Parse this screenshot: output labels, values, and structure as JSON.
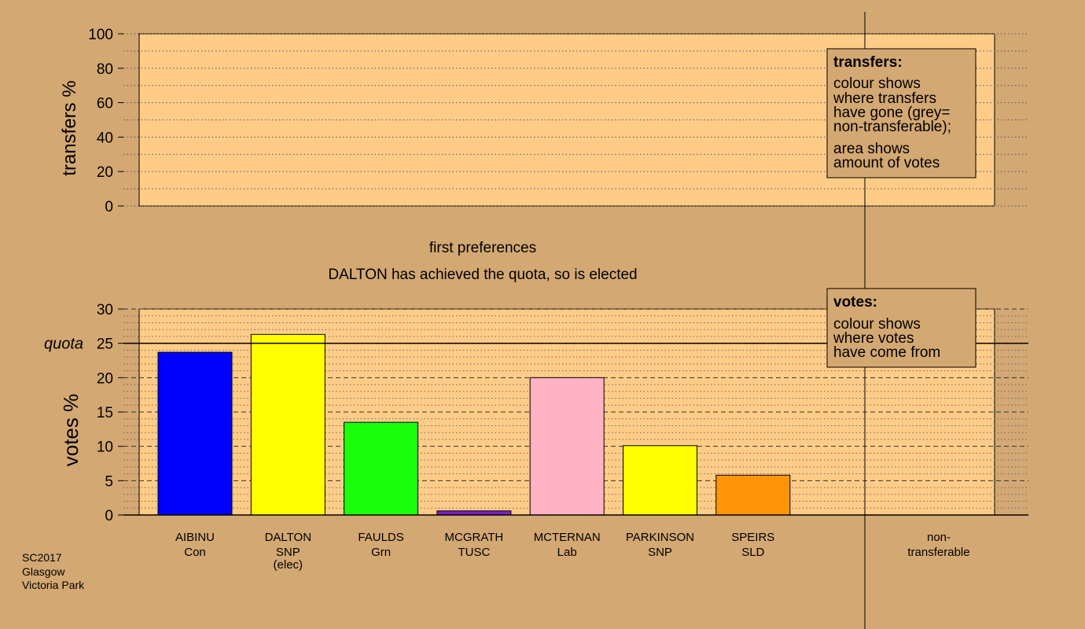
{
  "chart_data": [
    {
      "type": "bar",
      "panel": "transfers",
      "ylabel": "transfers %",
      "ylim": [
        0,
        100
      ],
      "yticks": [
        0,
        20,
        40,
        60,
        80,
        100
      ],
      "values": [],
      "legend": {
        "title": "transfers:",
        "lines1": [
          "colour shows",
          "where transfers",
          "have gone (grey=",
          "non-transferable);"
        ],
        "lines2": [
          "area shows",
          "amount of votes"
        ]
      }
    },
    {
      "type": "bar",
      "panel": "votes",
      "title": "first preferences",
      "subtitle": "DALTON has achieved the quota, so is elected",
      "ylabel": "votes %",
      "ylim": [
        0,
        30
      ],
      "yticks": [
        0,
        5,
        10,
        15,
        20,
        25,
        30
      ],
      "quota": 25,
      "quota_label": "quota",
      "categories": [
        {
          "name": "AIBINU",
          "party": "Con",
          "note": "",
          "value": 23.7,
          "color": "#0000ff"
        },
        {
          "name": "DALTON",
          "party": "SNP",
          "note": "(elec)",
          "value": 26.3,
          "color": "#ffff00"
        },
        {
          "name": "FAULDS",
          "party": "Grn",
          "note": "",
          "value": 13.5,
          "color": "#1aff0a"
        },
        {
          "name": "MCGRATH",
          "party": "TUSC",
          "note": "",
          "value": 0.6,
          "color": "#7a1fc4"
        },
        {
          "name": "MCTERNAN",
          "party": "Lab",
          "note": "",
          "value": 20.0,
          "color": "#ffb3c4"
        },
        {
          "name": "PARKINSON",
          "party": "SNP",
          "note": "",
          "value": 10.1,
          "color": "#ffff00"
        },
        {
          "name": "SPEIRS",
          "party": "SLD",
          "note": "",
          "value": 5.8,
          "color": "#ff9408"
        }
      ],
      "nontransferable": {
        "line1": "non-",
        "line2": "transferable",
        "value": 0
      },
      "legend": {
        "title": "votes:",
        "lines": [
          "colour shows",
          "where votes",
          "have come from"
        ]
      }
    }
  ],
  "footer": {
    "line1": "SC2017",
    "line2": "Glasgow",
    "line3": "Victoria Park"
  },
  "colors": {
    "background": "#d4a873",
    "plot_background": "#ffcc88"
  }
}
